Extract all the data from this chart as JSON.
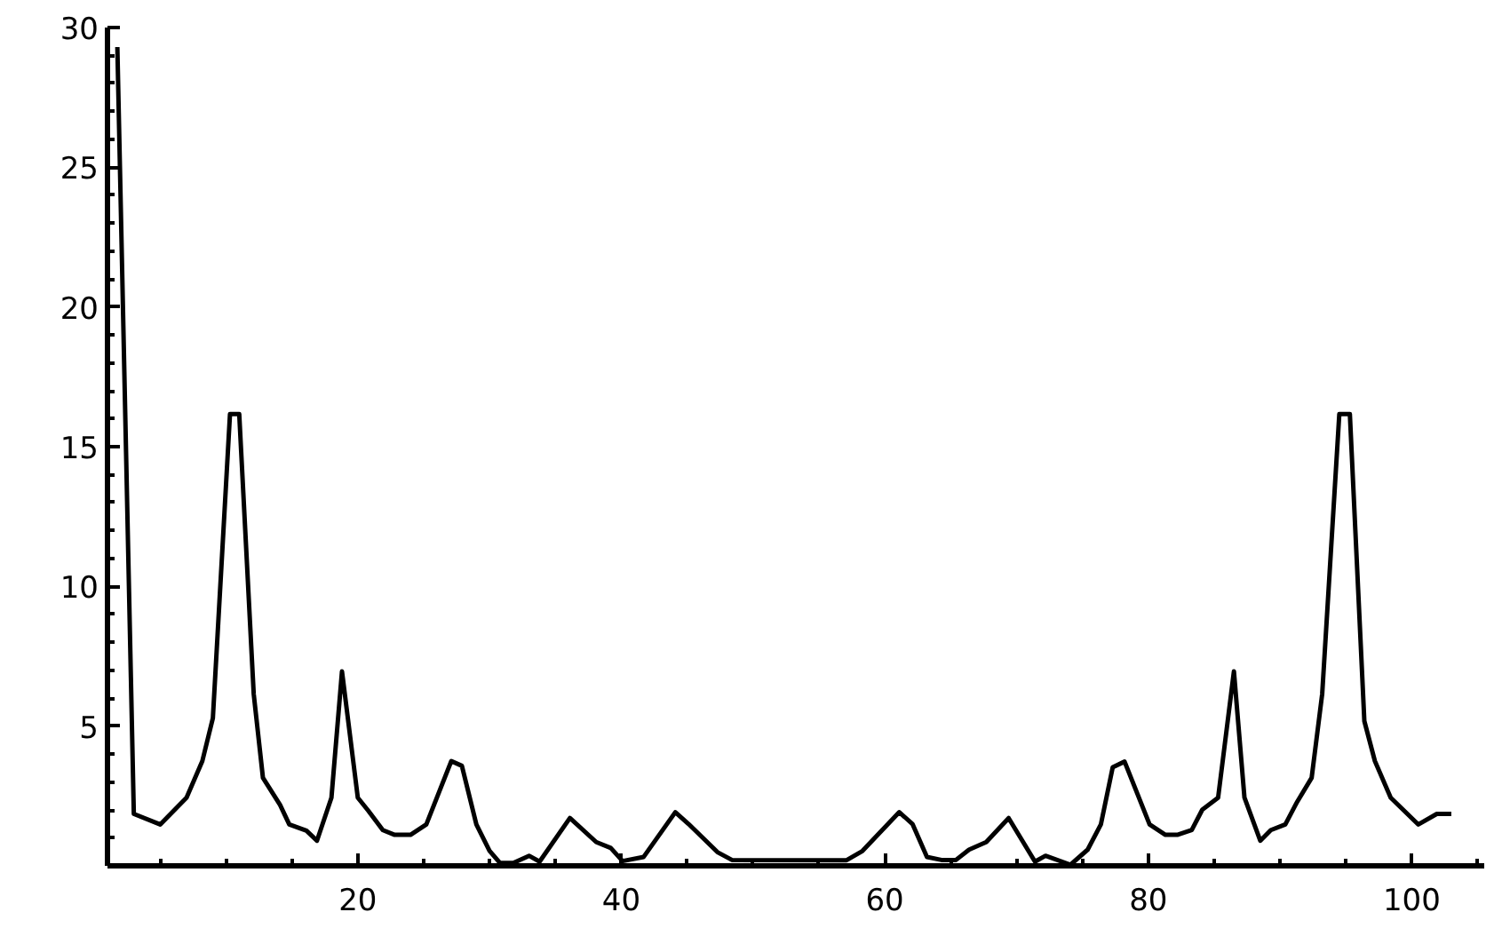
{
  "chart_data": {
    "type": "line",
    "x": [
      1.75,
      3.0,
      5.0,
      7.0,
      8.2,
      9.0,
      10.3,
      11.0,
      12.1,
      12.8,
      14.1,
      14.8,
      16.1,
      16.9,
      18.0,
      18.8,
      20.0,
      20.8,
      21.9,
      22.8,
      24.0,
      25.2,
      27.1,
      27.9,
      29.0,
      30.0,
      30.8,
      31.8,
      33.0,
      33.8,
      36.1,
      38.1,
      39.2,
      40.1,
      41.7,
      44.1,
      45.1,
      47.3,
      48.4,
      57.1,
      58.3,
      61.1,
      62.1,
      63.2,
      64.3,
      65.4,
      66.4,
      67.7,
      69.4,
      71.4,
      72.2,
      74.1,
      75.4,
      76.4,
      77.3,
      78.2,
      80.1,
      81.3,
      82.2,
      83.3,
      84.1,
      85.3,
      86.5,
      87.3,
      88.5,
      89.3,
      90.4,
      91.3,
      92.4,
      93.2,
      94.5,
      95.3,
      96.4,
      97.2,
      98.4,
      100.5,
      101.9,
      103.0
    ],
    "series": [
      {
        "color": "#000000",
        "values": [
          29.3,
          1.86,
          1.48,
          2.44,
          3.75,
          5.29,
          16.17,
          16.17,
          6.15,
          3.15,
          2.18,
          1.48,
          1.26,
          0.9,
          2.44,
          6.96,
          2.44,
          1.97,
          1.28,
          1.11,
          1.11,
          1.48,
          3.75,
          3.58,
          1.48,
          0.54,
          0.1,
          0.1,
          0.36,
          0.15,
          1.71,
          0.85,
          0.64,
          0.17,
          0.32,
          1.92,
          1.5,
          0.49,
          0.21,
          0.2,
          0.53,
          1.92,
          1.5,
          0.32,
          0.21,
          0.21,
          0.58,
          0.85,
          1.71,
          0.15,
          0.36,
          0.04,
          0.58,
          1.48,
          3.53,
          3.73,
          1.48,
          1.11,
          1.11,
          1.28,
          2.01,
          2.44,
          6.96,
          2.44,
          0.9,
          1.28,
          1.48,
          2.29,
          3.15,
          6.15,
          16.17,
          16.17,
          5.18,
          3.75,
          2.44,
          1.48,
          1.86,
          1.86
        ]
      }
    ],
    "xlim": [
      1,
      105.5
    ],
    "ylim": [
      0,
      30
    ],
    "xticks": [
      20,
      40,
      60,
      80,
      100
    ],
    "yticks": [
      5,
      10,
      15,
      20,
      25,
      30
    ],
    "grid": false,
    "marker": "none",
    "line_style": "solid"
  }
}
